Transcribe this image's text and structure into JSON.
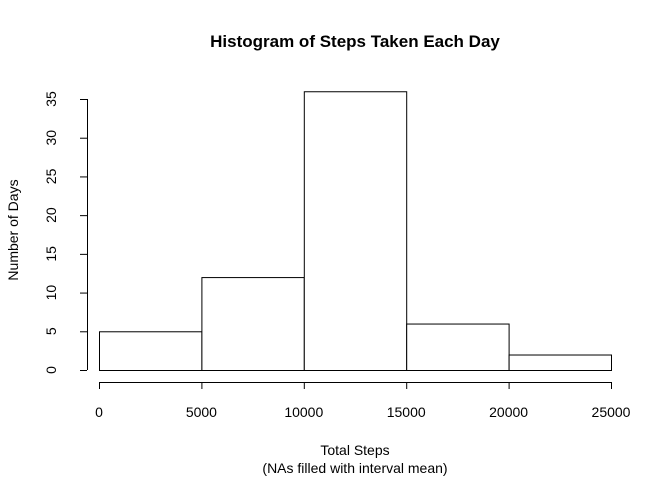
{
  "chart_data": {
    "type": "bar",
    "title": "Histogram of Steps Taken Each Day",
    "xlabel": "Total Steps",
    "xlabel_sub": "(NAs filled with interval mean)",
    "ylabel": "Number of Days",
    "bins": [
      {
        "start": 0,
        "end": 5000,
        "count": 5
      },
      {
        "start": 5000,
        "end": 10000,
        "count": 12
      },
      {
        "start": 10000,
        "end": 15000,
        "count": 36
      },
      {
        "start": 15000,
        "end": 20000,
        "count": 6
      },
      {
        "start": 20000,
        "end": 25000,
        "count": 2
      }
    ],
    "xlim": [
      0,
      25000
    ],
    "ylim": [
      0,
      36
    ],
    "x_ticks": [
      "0",
      "5000",
      "10000",
      "15000",
      "20000",
      "25000"
    ],
    "y_ticks": [
      "0",
      "5",
      "10",
      "15",
      "20",
      "25",
      "30",
      "35"
    ],
    "grid": false,
    "legend": "none"
  }
}
